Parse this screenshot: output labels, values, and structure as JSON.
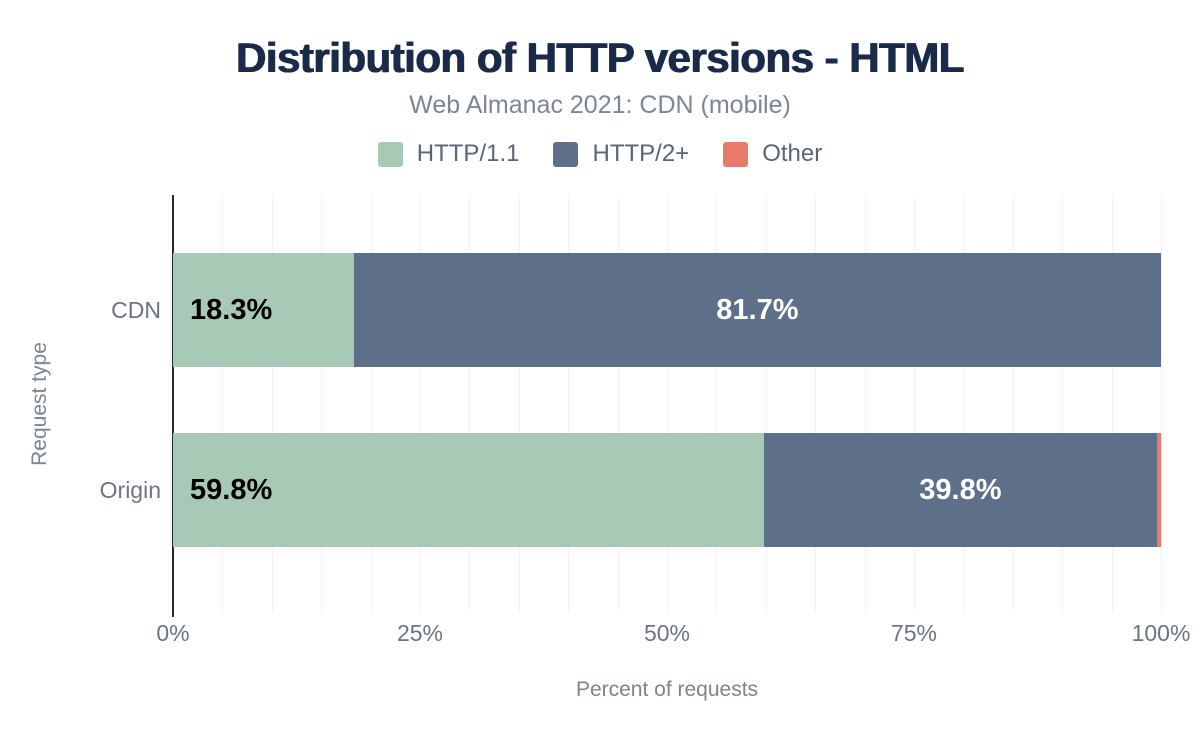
{
  "chart_data": {
    "type": "bar",
    "orientation": "horizontal-stacked",
    "title": "Distribution of HTTP versions - HTML",
    "subtitle": "Web Almanac 2021: CDN (mobile)",
    "xlabel": "Percent of requests",
    "ylabel": "Request type",
    "xlim": [
      0,
      100
    ],
    "grid": {
      "show": true,
      "interval": 5,
      "max": 100
    },
    "legend_position": "top",
    "categories": [
      "CDN",
      "Origin"
    ],
    "series": [
      {
        "name": "HTTP/1.1",
        "color": "#a8c9b6",
        "values": [
          18.3,
          59.8
        ],
        "labels": [
          "18.3%",
          "59.8%"
        ],
        "label_color": "#000000",
        "label_align": "left"
      },
      {
        "name": "HTTP/2+",
        "color": "#5e7089",
        "values": [
          81.7,
          39.8
        ],
        "labels": [
          "81.7%",
          "39.8%"
        ],
        "label_color": "#ffffff",
        "label_align": "center"
      },
      {
        "name": "Other",
        "color": "#e87b6c",
        "values": [
          0.0,
          0.4
        ],
        "labels": [
          "",
          ""
        ],
        "label_color": "#ffffff",
        "label_align": "center"
      }
    ],
    "xticks": [
      {
        "pos": 0,
        "label": "0%"
      },
      {
        "pos": 25,
        "label": "25%"
      },
      {
        "pos": 50,
        "label": "50%"
      },
      {
        "pos": 75,
        "label": "75%"
      },
      {
        "pos": 100,
        "label": "100%"
      }
    ],
    "colors": {
      "title": "#1a2b49",
      "subtitle": "#7d8694",
      "axis_line": "#24292e",
      "gridline": "#f2f2f5",
      "tick_text": "#6b7480"
    }
  }
}
